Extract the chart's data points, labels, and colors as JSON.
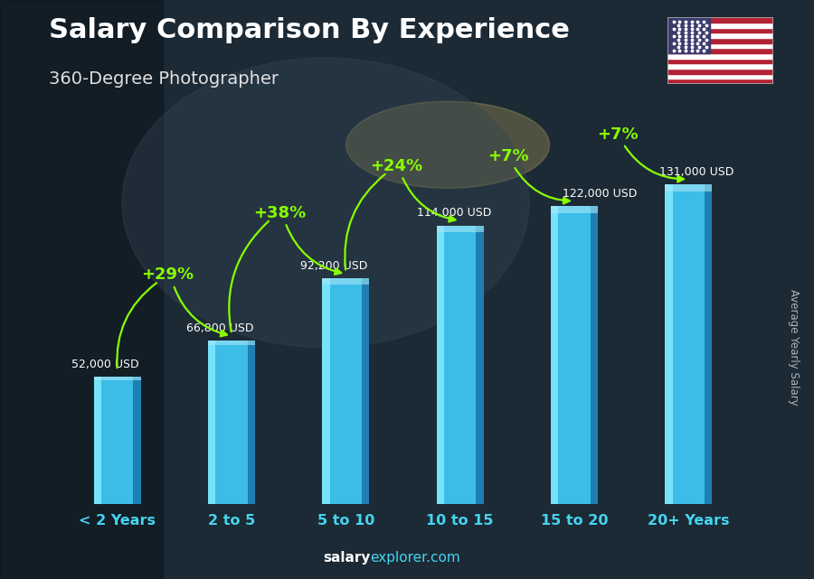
{
  "title": "Salary Comparison By Experience",
  "subtitle": "360-Degree Photographer",
  "ylabel_rotated": "Average Yearly Salary",
  "categories": [
    "< 2 Years",
    "2 to 5",
    "5 to 10",
    "10 to 15",
    "15 to 20",
    "20+ Years"
  ],
  "values": [
    52000,
    66800,
    92200,
    114000,
    122000,
    131000
  ],
  "value_labels": [
    "52,000 USD",
    "66,800 USD",
    "92,200 USD",
    "114,000 USD",
    "122,000 USD",
    "131,000 USD"
  ],
  "pct_labels": [
    "+29%",
    "+38%",
    "+24%",
    "+7%",
    "+7%"
  ],
  "bar_color_main": "#3bbde8",
  "bar_color_left": "#7de8ff",
  "bar_color_right": "#1a7aaa",
  "bar_color_top": "#c0f0ff",
  "bg_dark": "#1c2a35",
  "bg_overlay": "#2a3a45",
  "title_color": "#ffffff",
  "subtitle_color": "#e0e0e0",
  "label_color": "#ffffff",
  "pct_color": "#88ff00",
  "xlabel_color": "#45d4f0",
  "footer_salary_color": "#ffffff",
  "footer_explorer_color": "#45d4f0",
  "watermark_color": "#cccccc",
  "footer_text_bold": "salary",
  "footer_text_normal": "explorer.com"
}
